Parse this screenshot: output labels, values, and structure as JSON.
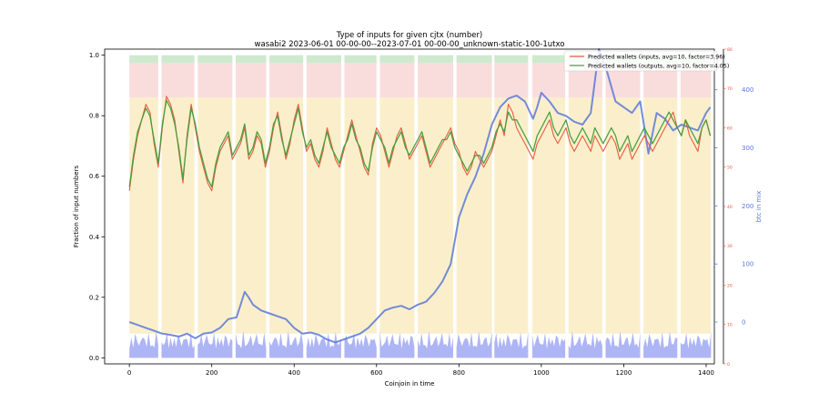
{
  "chart_data": {
    "type": "line",
    "title": "Type of inputs for given cjtx (number)",
    "subtitle": "wasabi2 2023-06-01 00-00-00--2023-07-01 00-00-00_unknown-static-100-1utxo",
    "xlabel": "Coinjoin in time",
    "ylabel": "Fraction of input numbers",
    "ylabel_right": "btc in mix",
    "xlim": [
      -60,
      1420
    ],
    "ylim": [
      -0.02,
      1.02
    ],
    "ylim_right": [
      -72,
      470
    ],
    "ylim_right_red": [
      0,
      80
    ],
    "xticks": [
      0,
      200,
      400,
      600,
      800,
      1000,
      1200,
      1400
    ],
    "yticks": [
      0.0,
      0.2,
      0.4,
      0.6,
      0.8,
      1.0
    ],
    "yticks_right": [
      0,
      100,
      200,
      300,
      400
    ],
    "yticks_right_red": [
      0,
      10,
      20,
      30,
      40,
      50,
      60,
      70,
      80
    ],
    "grid": false,
    "legend_position": "top-right",
    "colors": {
      "inputs": "#e8533a",
      "outputs": "#3f9e3a",
      "btc": "#5a79d8",
      "red_axis": "#e8533a",
      "band_blue": "#9aa3f2",
      "band_yellow": "#f9e4a8",
      "band_pink": "#f5c6c6",
      "band_green": "#bde3bd"
    },
    "series": [
      {
        "name": "Predicted wallets (inputs, avg=10, factor=3.96)",
        "axis": "right_red",
        "x": [
          0,
          10,
          20,
          30,
          40,
          50,
          60,
          70,
          80,
          90,
          100,
          110,
          120,
          130,
          140,
          150,
          160,
          170,
          180,
          190,
          200,
          210,
          220,
          230,
          240,
          250,
          260,
          270,
          280,
          290,
          300,
          310,
          320,
          330,
          340,
          350,
          360,
          370,
          380,
          390,
          400,
          410,
          420,
          430,
          440,
          450,
          460,
          470,
          480,
          490,
          500,
          510,
          520,
          530,
          540,
          550,
          560,
          570,
          580,
          590,
          600,
          610,
          620,
          630,
          640,
          650,
          660,
          670,
          680,
          690,
          700,
          710,
          720,
          730,
          740,
          750,
          760,
          770,
          780,
          790,
          800,
          810,
          820,
          830,
          840,
          850,
          860,
          870,
          880,
          890,
          900,
          910,
          920,
          930,
          940,
          950,
          960,
          970,
          980,
          990,
          1000,
          1010,
          1020,
          1030,
          1040,
          1050,
          1060,
          1070,
          1080,
          1090,
          1100,
          1110,
          1120,
          1130,
          1140,
          1150,
          1160,
          1170,
          1180,
          1190,
          1200,
          1210,
          1220,
          1230,
          1240,
          1250,
          1260,
          1270,
          1280,
          1290,
          1300,
          1310,
          1320,
          1330,
          1340,
          1350,
          1360,
          1370,
          1380,
          1390,
          1400,
          1410
        ],
        "values": [
          44,
          52,
          58,
          62,
          66,
          64,
          56,
          50,
          60,
          68,
          66,
          62,
          54,
          46,
          58,
          66,
          60,
          54,
          50,
          46,
          44,
          50,
          54,
          56,
          58,
          52,
          54,
          56,
          60,
          52,
          54,
          58,
          56,
          50,
          54,
          60,
          64,
          58,
          52,
          56,
          62,
          66,
          60,
          54,
          56,
          52,
          50,
          54,
          60,
          56,
          52,
          50,
          54,
          58,
          62,
          58,
          54,
          50,
          48,
          56,
          60,
          58,
          54,
          50,
          54,
          58,
          60,
          56,
          52,
          54,
          56,
          58,
          54,
          50,
          52,
          54,
          56,
          58,
          60,
          56,
          54,
          50,
          48,
          50,
          54,
          52,
          50,
          52,
          54,
          58,
          62,
          58,
          66,
          64,
          60,
          58,
          56,
          54,
          52,
          56,
          58,
          60,
          62,
          58,
          56,
          58,
          60,
          56,
          54,
          56,
          58,
          56,
          54,
          58,
          56,
          54,
          56,
          58,
          56,
          52,
          54,
          56,
          52,
          54,
          56,
          58,
          56,
          54,
          56,
          58,
          60,
          62,
          64,
          60,
          58,
          62,
          58,
          56,
          54,
          60,
          62,
          58
        ]
      },
      {
        "name": "Predicted wallets (outputs, avg=10, factor=4.05)",
        "axis": "right_red",
        "x": [
          0,
          10,
          20,
          30,
          40,
          50,
          60,
          70,
          80,
          90,
          100,
          110,
          120,
          130,
          140,
          150,
          160,
          170,
          180,
          190,
          200,
          210,
          220,
          230,
          240,
          250,
          260,
          270,
          280,
          290,
          300,
          310,
          320,
          330,
          340,
          350,
          360,
          370,
          380,
          390,
          400,
          410,
          420,
          430,
          440,
          450,
          460,
          470,
          480,
          490,
          500,
          510,
          520,
          530,
          540,
          550,
          560,
          570,
          580,
          590,
          600,
          610,
          620,
          630,
          640,
          650,
          660,
          670,
          680,
          690,
          700,
          710,
          720,
          730,
          740,
          750,
          760,
          770,
          780,
          790,
          800,
          810,
          820,
          830,
          840,
          850,
          860,
          870,
          880,
          890,
          900,
          910,
          920,
          930,
          940,
          950,
          960,
          970,
          980,
          990,
          1000,
          1010,
          1020,
          1030,
          1040,
          1050,
          1060,
          1070,
          1080,
          1090,
          1100,
          1110,
          1120,
          1130,
          1140,
          1150,
          1160,
          1170,
          1180,
          1190,
          1200,
          1210,
          1220,
          1230,
          1240,
          1250,
          1260,
          1270,
          1280,
          1290,
          1300,
          1310,
          1320,
          1330,
          1340,
          1350,
          1360,
          1370,
          1380,
          1390,
          1400,
          1410
        ],
        "values": [
          45,
          53,
          59,
          62,
          65,
          63,
          57,
          51,
          61,
          67,
          65,
          61,
          55,
          47,
          57,
          65,
          61,
          55,
          51,
          47,
          45,
          51,
          55,
          57,
          59,
          53,
          55,
          57,
          61,
          53,
          55,
          59,
          57,
          51,
          55,
          61,
          63,
          57,
          53,
          57,
          61,
          65,
          59,
          55,
          57,
          53,
          51,
          55,
          59,
          55,
          53,
          51,
          55,
          57,
          61,
          57,
          55,
          51,
          49,
          55,
          59,
          57,
          55,
          51,
          55,
          57,
          59,
          55,
          53,
          55,
          57,
          59,
          55,
          51,
          53,
          55,
          57,
          57,
          59,
          55,
          53,
          51,
          49,
          51,
          53,
          53,
          51,
          53,
          55,
          59,
          61,
          59,
          64,
          62,
          62,
          60,
          58,
          56,
          54,
          58,
          60,
          62,
          64,
          60,
          58,
          60,
          62,
          58,
          56,
          58,
          60,
          58,
          56,
          60,
          58,
          56,
          58,
          60,
          58,
          54,
          56,
          58,
          54,
          56,
          58,
          60,
          58,
          56,
          58,
          60,
          62,
          64,
          62,
          60,
          58,
          62,
          60,
          58,
          56,
          60,
          62,
          58
        ]
      },
      {
        "name": "btc in mix",
        "axis": "right",
        "x": [
          0,
          20,
          40,
          60,
          80,
          100,
          120,
          140,
          160,
          180,
          200,
          220,
          240,
          260,
          270,
          280,
          290,
          300,
          320,
          340,
          360,
          380,
          400,
          420,
          440,
          460,
          480,
          500,
          520,
          540,
          560,
          580,
          600,
          620,
          640,
          660,
          680,
          700,
          720,
          740,
          760,
          780,
          790,
          800,
          820,
          840,
          860,
          880,
          900,
          920,
          940,
          960,
          980,
          990,
          1000,
          1020,
          1040,
          1060,
          1080,
          1100,
          1120,
          1140,
          1160,
          1180,
          1200,
          1220,
          1240,
          1260,
          1280,
          1300,
          1320,
          1340,
          1360,
          1380,
          1400,
          1410
        ],
        "values": [
          0,
          -5,
          -10,
          -15,
          -20,
          -22,
          -25,
          -20,
          -28,
          -20,
          -18,
          -10,
          5,
          8,
          30,
          52,
          42,
          30,
          20,
          15,
          10,
          5,
          -10,
          -20,
          -18,
          -22,
          -30,
          -35,
          -30,
          -25,
          -20,
          -10,
          5,
          20,
          25,
          28,
          22,
          30,
          35,
          50,
          70,
          100,
          140,
          180,
          220,
          250,
          290,
          340,
          370,
          385,
          390,
          380,
          350,
          370,
          395,
          380,
          360,
          355,
          345,
          340,
          360,
          470,
          430,
          380,
          370,
          360,
          380,
          290,
          360,
          350,
          330,
          340,
          335,
          330,
          360,
          370
        ]
      }
    ]
  }
}
